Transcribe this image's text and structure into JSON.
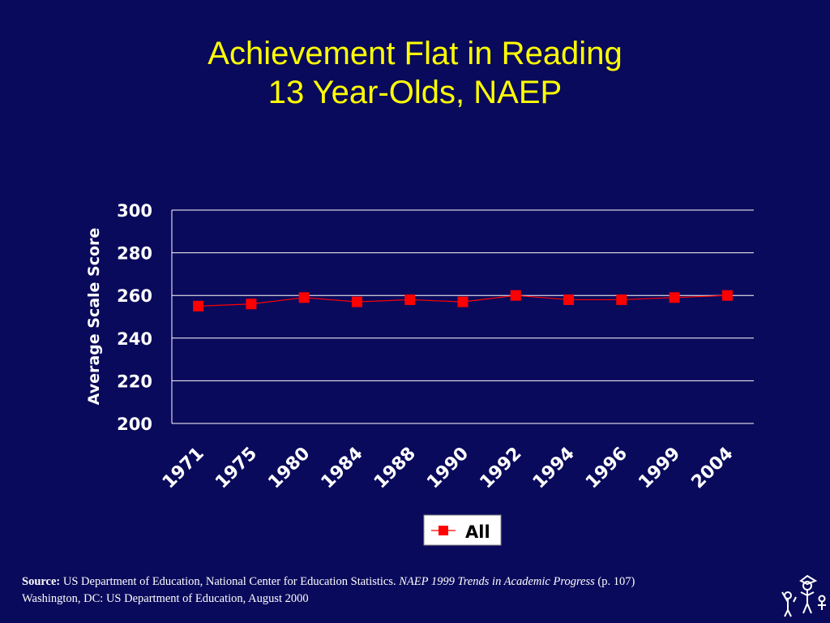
{
  "title_line1": "Achievement Flat in Reading",
  "title_line2": "13 Year-Olds, NAEP",
  "chart_data": {
    "type": "line",
    "categories": [
      "1971",
      "1975",
      "1980",
      "1984",
      "1988",
      "1990",
      "1992",
      "1994",
      "1996",
      "1999",
      "2004"
    ],
    "series": [
      {
        "name": "All",
        "values": [
          255,
          256,
          259,
          257,
          258,
          257,
          260,
          258,
          258,
          259,
          260
        ],
        "color": "#ff0000"
      }
    ],
    "xlabel": "",
    "ylabel": "Average Scale Score",
    "ylim": [
      200,
      300
    ],
    "yticks": [
      200,
      220,
      240,
      260,
      280,
      300
    ],
    "grid": true,
    "legend": "bottom-center",
    "marker": "square"
  },
  "source": {
    "label": "Source:",
    "text1": " US Department of Education, National Center for Education Statistics. ",
    "italic": "NAEP 1999 Trends in Academic Progress",
    "text2": " (p. 107)",
    "line2": "Washington, DC: US  Department of Education, August 2000"
  },
  "colors": {
    "background": "#0a0a5c",
    "title": "#ffff00",
    "text": "#ffffff",
    "series": "#ff0000"
  }
}
